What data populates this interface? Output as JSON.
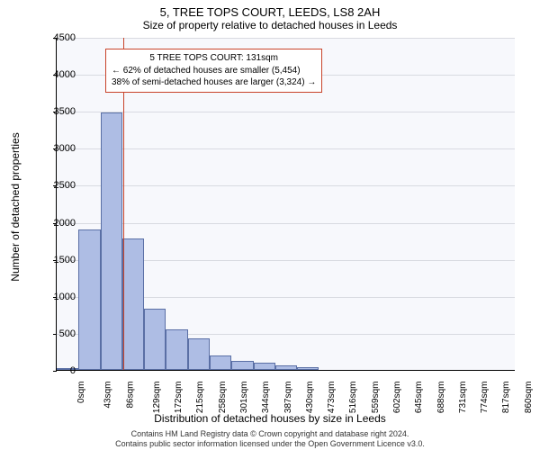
{
  "titles": {
    "main": "5, TREE TOPS COURT, LEEDS, LS8 2AH",
    "sub": "Size of property relative to detached houses in Leeds"
  },
  "axes": {
    "xlabel": "Distribution of detached houses by size in Leeds",
    "ylabel": "Number of detached properties",
    "ylim": [
      0,
      4500
    ],
    "ytick_step": 500,
    "xlim": [
      0,
      903
    ],
    "xtick_step": 43,
    "x_unit": "sqm"
  },
  "histogram": {
    "type": "histogram",
    "bin_width_sqm": 43,
    "bin_starts": [
      0,
      43,
      86,
      129,
      172,
      215,
      258,
      301,
      344,
      387,
      430,
      473
    ],
    "counts": [
      10,
      1900,
      3480,
      1770,
      830,
      550,
      430,
      200,
      120,
      100,
      60,
      40
    ],
    "bar_fill": "#aebde4",
    "bar_stroke": "#5a6fa5",
    "background_color": "#f7f8fc",
    "grid_color": "#c3c7cf"
  },
  "marker": {
    "value_sqm": 131,
    "color": "#c8432a"
  },
  "annotation": {
    "line1": "5 TREE TOPS COURT: 131sqm",
    "line2": "← 62% of detached houses are smaller (5,454)",
    "line3": "38% of semi-detached houses are larger (3,324) →",
    "border_color": "#c8432a"
  },
  "footer": {
    "line1": "Contains HM Land Registry data © Crown copyright and database right 2024.",
    "line2": "Contains public sector information licensed under the Open Government Licence v3.0."
  },
  "y_ticks": [
    "0",
    "500",
    "1000",
    "1500",
    "2000",
    "2500",
    "3000",
    "3500",
    "4000",
    "4500"
  ],
  "x_ticks": [
    "0sqm",
    "43sqm",
    "86sqm",
    "129sqm",
    "172sqm",
    "215sqm",
    "258sqm",
    "301sqm",
    "344sqm",
    "387sqm",
    "430sqm",
    "473sqm",
    "516sqm",
    "559sqm",
    "602sqm",
    "645sqm",
    "688sqm",
    "731sqm",
    "774sqm",
    "817sqm",
    "860sqm"
  ]
}
